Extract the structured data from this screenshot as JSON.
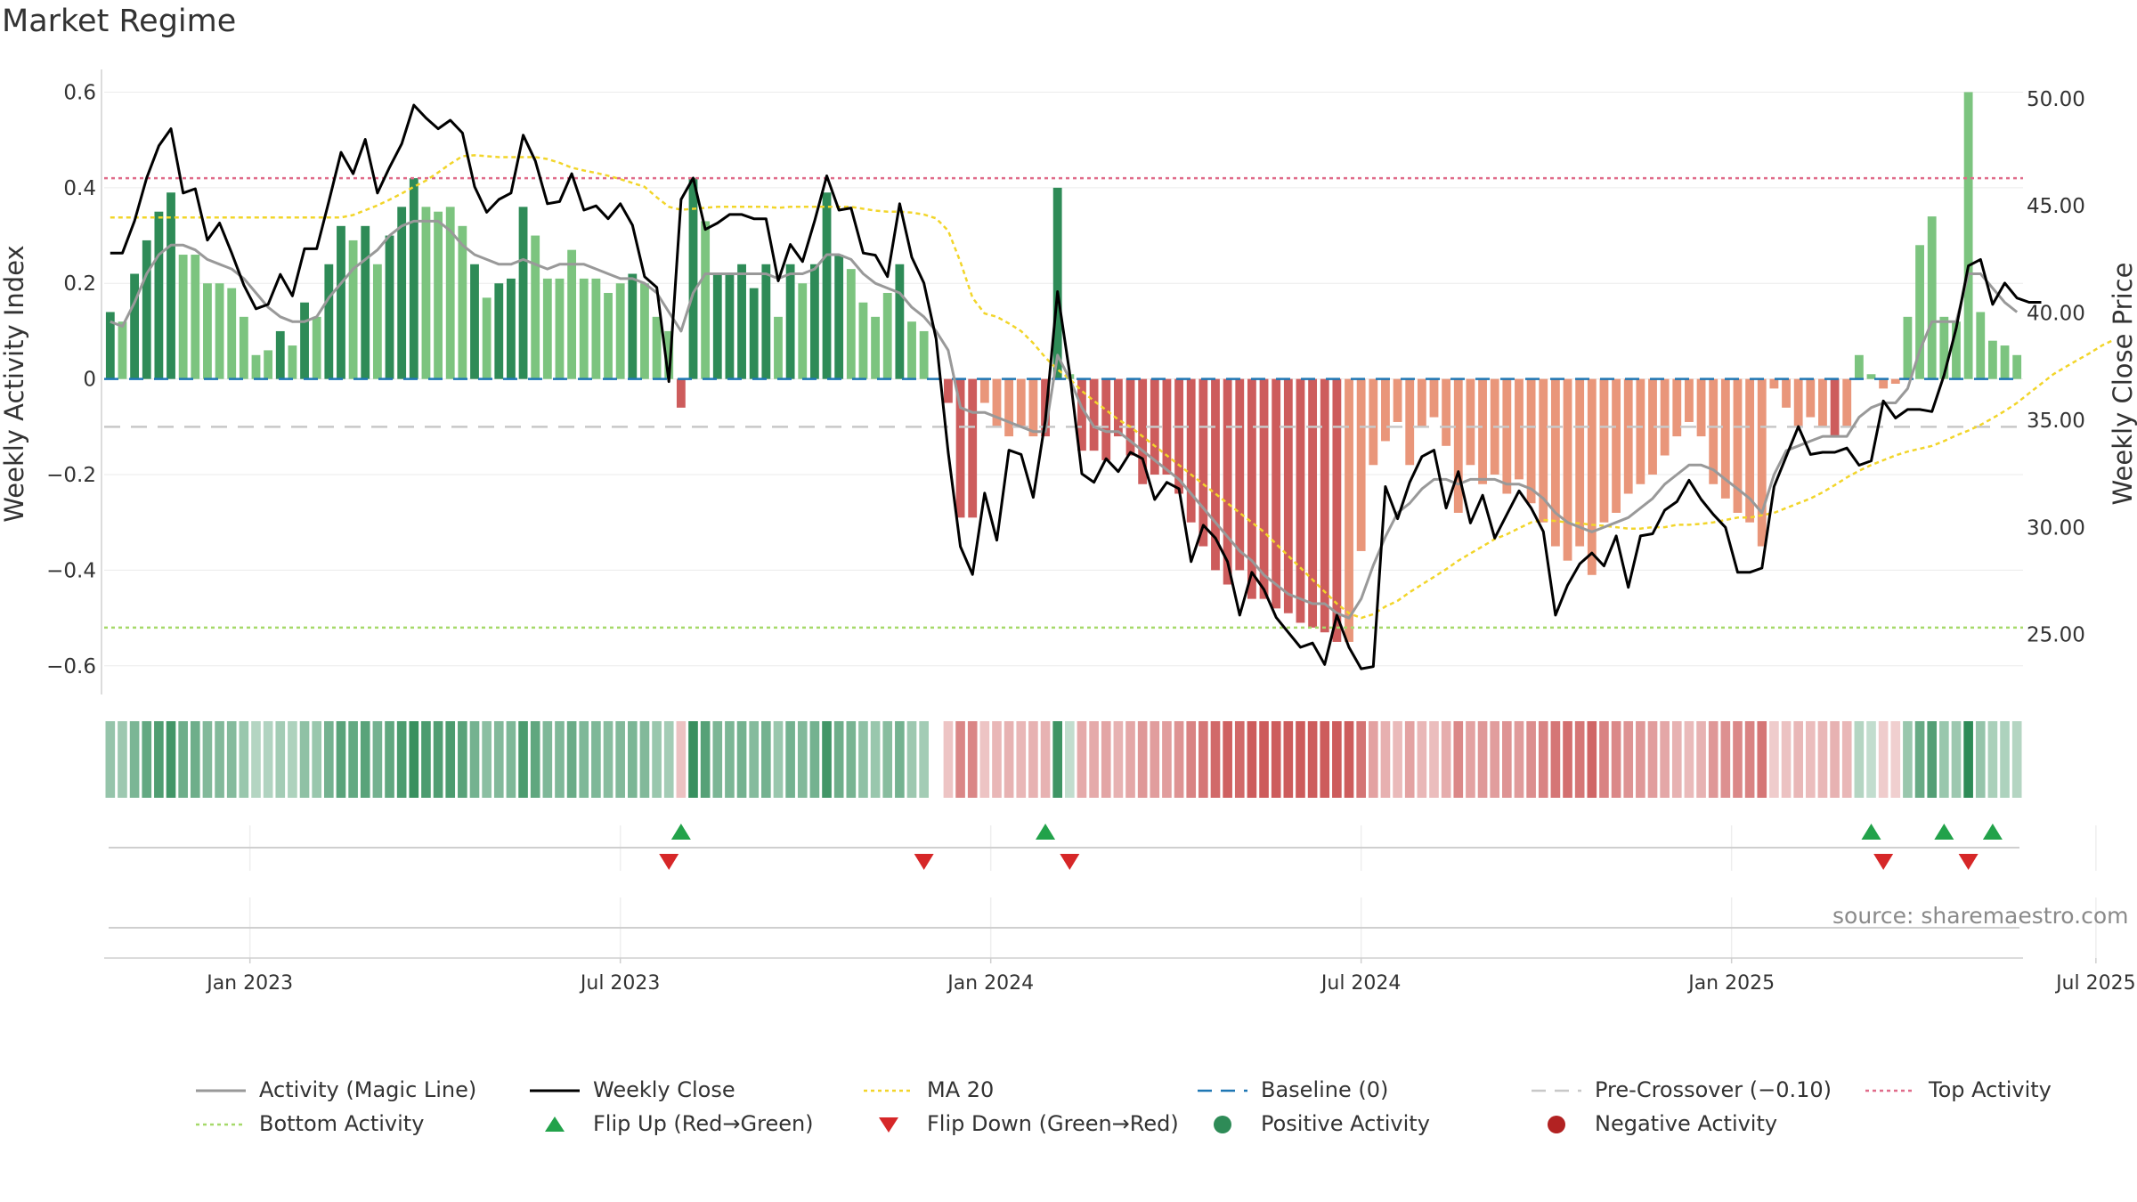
{
  "title": "Market Regime",
  "source": "source: sharemaestro.com",
  "colors": {
    "pos_strong": "#2e8b57",
    "pos_light": "#7cc47f",
    "neg_strong": "#cd5c5c",
    "neg_light": "#e9967a",
    "magic_line": "#999999",
    "weekly_close": "#000000",
    "ma20": "#f2d52a",
    "baseline": "#1f77b4",
    "pre_crossover": "#c8c8c8",
    "top_activity": "#e06c8a",
    "bottom_activity": "#a6d96a",
    "flip_up": "#22a24a",
    "flip_down": "#d62728"
  },
  "chart_data": {
    "type": "bar",
    "y_left": {
      "label": "Weekly Activity Index",
      "ticks": [
        "0.6",
        "0.4",
        "0.2",
        "0",
        "−0.2",
        "−0.4",
        "−0.6"
      ],
      "tick_values": [
        0.6,
        0.4,
        0.2,
        0,
        -0.2,
        -0.4,
        -0.6
      ],
      "ylim": [
        -0.66,
        0.64
      ]
    },
    "y_right": {
      "label": "Weekly Close Price",
      "ticks": [
        "50.00",
        "45.00",
        "40.00",
        "35.00",
        "30.00",
        "25.00"
      ],
      "tick_values": [
        50,
        45,
        40,
        35,
        30,
        25
      ],
      "ylim": [
        22.2,
        51.2
      ]
    },
    "x_axis": {
      "ticks": [
        "Jan 2023",
        "Jul 2023",
        "Jan 2024",
        "Jul 2024",
        "Jan 2025",
        "Jul 2025"
      ],
      "tick_weeks": [
        12,
        42.5,
        73,
        103.5,
        134,
        164
      ]
    },
    "reference_lines": {
      "top_activity": 0.42,
      "bottom_activity": -0.52,
      "pre_crossover": -0.1,
      "baseline": 0
    },
    "activity": [
      0.14,
      0.12,
      0.22,
      0.29,
      0.35,
      0.39,
      0.26,
      0.26,
      0.2,
      0.2,
      0.19,
      0.13,
      0.05,
      0.06,
      0.1,
      0.07,
      0.16,
      0.13,
      0.24,
      0.32,
      0.29,
      0.32,
      0.24,
      0.3,
      0.36,
      0.42,
      0.36,
      0.35,
      0.36,
      0.32,
      0.24,
      0.17,
      0.2,
      0.21,
      0.36,
      0.3,
      0.21,
      0.21,
      0.27,
      0.21,
      0.21,
      0.18,
      0.2,
      0.22,
      0.2,
      0.13,
      0.1,
      -0.06,
      0.42,
      0.33,
      0.22,
      0.22,
      0.24,
      0.19,
      0.24,
      0.13,
      0.24,
      0.2,
      0.24,
      0.39,
      0.26,
      0.23,
      0.16,
      0.13,
      0.18,
      0.24,
      0.12,
      0.1,
      0.0,
      -0.05,
      -0.29,
      -0.29,
      -0.05,
      -0.1,
      -0.12,
      -0.1,
      -0.12,
      -0.12,
      0.4,
      0.01,
      -0.15,
      -0.15,
      -0.17,
      -0.12,
      -0.16,
      -0.22,
      -0.2,
      -0.2,
      -0.24,
      -0.3,
      -0.35,
      -0.4,
      -0.43,
      -0.4,
      -0.46,
      -0.46,
      -0.48,
      -0.49,
      -0.51,
      -0.52,
      -0.53,
      -0.55,
      -0.55,
      -0.36,
      -0.18,
      -0.13,
      -0.09,
      -0.18,
      -0.1,
      -0.08,
      -0.14,
      -0.28,
      -0.18,
      -0.22,
      -0.2,
      -0.24,
      -0.21,
      -0.26,
      -0.3,
      -0.35,
      -0.38,
      -0.35,
      -0.41,
      -0.3,
      -0.28,
      -0.24,
      -0.22,
      -0.2,
      -0.16,
      -0.12,
      -0.09,
      -0.12,
      -0.22,
      -0.25,
      -0.28,
      -0.3,
      -0.35,
      -0.02,
      -0.06,
      -0.1,
      -0.08,
      -0.1,
      -0.12,
      -0.1,
      0.05,
      0.01,
      -0.02,
      -0.01,
      0.13,
      0.28,
      0.34,
      0.13,
      0.12,
      0.6,
      0.14,
      0.08,
      0.07,
      0.05
    ],
    "activity_gap_weeks": [
      68,
      71
    ],
    "shade_light": [
      1,
      6,
      7,
      8,
      9,
      10,
      11,
      12,
      13,
      15,
      17,
      20,
      22,
      26,
      27,
      28,
      29,
      31,
      35,
      36,
      37,
      38,
      39,
      40,
      41,
      42,
      44,
      45,
      46,
      49,
      55,
      57,
      61,
      62,
      63,
      64,
      66,
      67,
      72,
      73,
      74,
      75,
      76,
      79,
      102,
      103,
      104,
      105,
      106,
      107,
      108,
      109,
      110,
      111,
      112,
      113,
      114,
      115,
      116,
      117,
      118,
      119,
      120,
      121,
      122,
      123,
      124,
      125,
      126,
      127,
      128,
      129,
      130,
      131,
      132,
      133,
      134,
      135,
      136,
      137,
      138,
      139,
      140,
      141,
      143,
      144,
      145,
      146,
      147,
      148,
      149,
      150,
      151,
      152,
      153,
      154,
      155,
      156,
      157,
      158,
      159,
      160,
      161,
      162,
      163,
      165,
      166,
      167,
      168,
      170,
      171,
      172,
      173,
      174,
      175,
      176,
      177,
      178,
      179,
      180,
      181,
      182,
      183
    ],
    "magic_line": [
      0.12,
      0.11,
      0.16,
      0.22,
      0.26,
      0.28,
      0.28,
      0.27,
      0.25,
      0.24,
      0.23,
      0.21,
      0.18,
      0.15,
      0.13,
      0.12,
      0.12,
      0.13,
      0.17,
      0.2,
      0.23,
      0.25,
      0.27,
      0.3,
      0.32,
      0.33,
      0.33,
      0.33,
      0.31,
      0.28,
      0.26,
      0.25,
      0.24,
      0.24,
      0.25,
      0.24,
      0.23,
      0.24,
      0.24,
      0.24,
      0.23,
      0.22,
      0.21,
      0.21,
      0.2,
      0.18,
      0.14,
      0.1,
      0.18,
      0.22,
      0.22,
      0.22,
      0.22,
      0.22,
      0.22,
      0.21,
      0.22,
      0.22,
      0.23,
      0.26,
      0.26,
      0.25,
      0.22,
      0.2,
      0.19,
      0.18,
      0.15,
      0.13,
      0.1,
      0.06,
      -0.06,
      -0.07,
      -0.07,
      -0.08,
      -0.09,
      -0.1,
      -0.11,
      -0.11,
      0.05,
      0.0,
      -0.06,
      -0.1,
      -0.11,
      -0.11,
      -0.13,
      -0.15,
      -0.17,
      -0.19,
      -0.21,
      -0.24,
      -0.27,
      -0.3,
      -0.33,
      -0.36,
      -0.38,
      -0.41,
      -0.43,
      -0.45,
      -0.46,
      -0.47,
      -0.47,
      -0.49,
      -0.5,
      -0.46,
      -0.39,
      -0.33,
      -0.28,
      -0.26,
      -0.23,
      -0.21,
      -0.21,
      -0.22,
      -0.21,
      -0.21,
      -0.21,
      -0.22,
      -0.22,
      -0.23,
      -0.25,
      -0.28,
      -0.3,
      -0.31,
      -0.32,
      -0.31,
      -0.3,
      -0.29,
      -0.27,
      -0.25,
      -0.22,
      -0.2,
      -0.18,
      -0.18,
      -0.19,
      -0.21,
      -0.23,
      -0.25,
      -0.28,
      -0.2,
      -0.15,
      -0.14,
      -0.13,
      -0.12,
      -0.12,
      -0.12,
      -0.08,
      -0.06,
      -0.05,
      -0.05,
      -0.02,
      0.06,
      0.12,
      0.12,
      0.12,
      0.22,
      0.22,
      0.19,
      0.16,
      0.14
    ],
    "weekly_close": [
      42.8,
      42.8,
      44.3,
      46.3,
      47.8,
      48.6,
      45.6,
      45.8,
      43.4,
      44.2,
      42.8,
      41.3,
      40.2,
      40.4,
      41.8,
      40.8,
      43,
      43,
      45.2,
      47.5,
      46.5,
      48.1,
      45.6,
      46.8,
      47.9,
      49.7,
      49.1,
      48.6,
      49,
      48.4,
      45.9,
      44.7,
      45.3,
      45.6,
      48.3,
      47.1,
      45.1,
      45.2,
      46.5,
      44.8,
      45,
      44.4,
      45.1,
      44.1,
      41.7,
      41.2,
      36.8,
      45.3,
      46.3,
      43.9,
      44.2,
      44.6,
      44.6,
      44.4,
      44.4,
      41.5,
      43.2,
      42.4,
      44.3,
      46.4,
      44.8,
      44.9,
      42.8,
      42.7,
      41.7,
      45.1,
      42.6,
      41.4,
      38.8,
      33.5,
      29.1,
      27.8,
      31.6,
      29.4,
      33.6,
      33.4,
      31.4,
      35,
      41,
      37.2,
      32.5,
      32.1,
      33.2,
      32.6,
      33.5,
      33.2,
      31.3,
      32.1,
      31.8,
      28.4,
      30.1,
      29.5,
      28.4,
      25.9,
      27.9,
      27.1,
      25.8,
      25.1,
      24.4,
      24.6,
      23.6,
      25.9,
      24.4,
      23.4,
      23.5,
      31.9,
      30.4,
      32.1,
      33.3,
      33.6,
      30.9,
      32.6,
      30.2,
      31.5,
      29.5,
      30.6,
      31.7,
      30.9,
      29.8,
      25.9,
      27.3,
      28.3,
      28.8,
      28.2,
      29.6,
      27.2,
      29.6,
      29.7,
      30.8,
      31.2,
      32.2,
      31.3,
      30.6,
      30,
      27.9,
      27.9,
      28.1,
      31.9,
      33.3,
      34.7,
      33.4,
      33.5,
      33.5,
      33.7,
      32.9,
      33.1,
      35.9,
      35.1,
      35.5,
      35.5,
      35.4,
      37.1,
      39.3,
      42.2,
      42.5,
      40.4,
      41.4,
      40.7,
      40.5,
      40.5
    ],
    "ma20": [
      0.338,
      0.338,
      0.338,
      0.338,
      0.338,
      0.338,
      0.338,
      0.338,
      0.338,
      0.338,
      0.338,
      0.338,
      0.338,
      0.338,
      0.338,
      0.338,
      0.338,
      0.338,
      0.338,
      0.338,
      0.343,
      0.353,
      0.363,
      0.375,
      0.388,
      0.402,
      0.415,
      0.432,
      0.45,
      0.466,
      0.468,
      0.466,
      0.464,
      0.464,
      0.464,
      0.464,
      0.46,
      0.452,
      0.442,
      0.436,
      0.431,
      0.425,
      0.418,
      0.41,
      0.402,
      0.38,
      0.36,
      0.354,
      0.356,
      0.358,
      0.36,
      0.36,
      0.36,
      0.36,
      0.36,
      0.358,
      0.36,
      0.36,
      0.36,
      0.36,
      0.36,
      0.36,
      0.356,
      0.352,
      0.35,
      0.35,
      0.348,
      0.344,
      0.336,
      0.31,
      0.245,
      0.17,
      0.137,
      0.13,
      0.116,
      0.1,
      0.075,
      0.045,
      0.02,
      0.0,
      -0.025,
      -0.046,
      -0.065,
      -0.085,
      -0.1,
      -0.12,
      -0.14,
      -0.16,
      -0.18,
      -0.2,
      -0.22,
      -0.24,
      -0.26,
      -0.28,
      -0.3,
      -0.32,
      -0.345,
      -0.37,
      -0.395,
      -0.42,
      -0.445,
      -0.47,
      -0.49,
      -0.5,
      -0.492,
      -0.476,
      -0.464,
      -0.446,
      -0.43,
      -0.414,
      -0.398,
      -0.38,
      -0.365,
      -0.35,
      -0.335,
      -0.325,
      -0.312,
      -0.3,
      -0.295,
      -0.297,
      -0.3,
      -0.302,
      -0.305,
      -0.307,
      -0.31,
      -0.313,
      -0.313,
      -0.31,
      -0.31,
      -0.305,
      -0.305,
      -0.303,
      -0.3,
      -0.295,
      -0.29,
      -0.29,
      -0.285,
      -0.28,
      -0.27,
      -0.26,
      -0.25,
      -0.237,
      -0.222,
      -0.206,
      -0.192,
      -0.18,
      -0.17,
      -0.16,
      -0.152,
      -0.146,
      -0.14,
      -0.13,
      -0.118,
      -0.108,
      -0.096,
      -0.082,
      -0.067,
      -0.05,
      -0.03,
      -0.01,
      0.01,
      0.025,
      0.04,
      0.054,
      0.07,
      0.082
    ],
    "flips_up": [
      47,
      77,
      145,
      151,
      155
    ],
    "flips_down": [
      46,
      67,
      79,
      146,
      153
    ],
    "legend": [
      {
        "label": "Activity (Magic Line)",
        "symbol": "line",
        "color": "#999999"
      },
      {
        "label": "Weekly Close",
        "symbol": "line",
        "color": "#000000"
      },
      {
        "label": "MA 20",
        "symbol": "dotted",
        "color": "#f2d52a"
      },
      {
        "label": "Baseline (0)",
        "symbol": "dashed",
        "color": "#1f77b4"
      },
      {
        "label": "Pre-Crossover (−0.10)",
        "symbol": "dashed",
        "color": "#c8c8c8"
      },
      {
        "label": "Top Activity",
        "symbol": "dotted",
        "color": "#e06c8a"
      },
      {
        "label": "Bottom Activity",
        "symbol": "dotted",
        "color": "#a6d96a"
      },
      {
        "label": "Flip Up (Red→Green)",
        "symbol": "tri-up",
        "color": "#22a24a"
      },
      {
        "label": "Flip Down (Green→Red)",
        "symbol": "tri-down",
        "color": "#d62728"
      },
      {
        "label": "Positive Activity",
        "symbol": "dot",
        "color": "#2e8b57"
      },
      {
        "label": "Negative Activity",
        "symbol": "dot",
        "color": "#b22222"
      }
    ]
  }
}
